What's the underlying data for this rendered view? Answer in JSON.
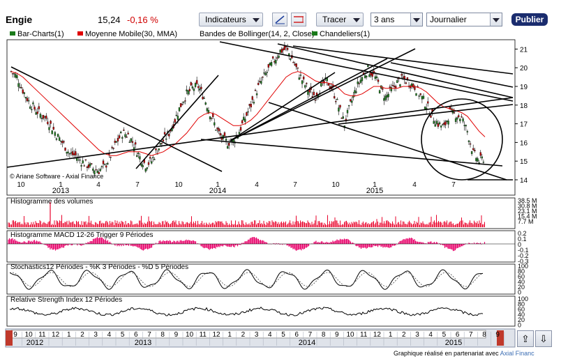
{
  "header": {
    "title": "Engie",
    "price": "15,24",
    "change": "-0,16 %",
    "indicators_label": "Indicateurs",
    "tracer_label": "Tracer",
    "period_value": "3 ans",
    "interval_value": "Journalier",
    "publish_label": "Publier"
  },
  "legend": [
    {
      "label": "Bar-Charts(1)",
      "color": "#1a7a1a"
    },
    {
      "label": "Moyenne Mobile(30, MMA)",
      "color": "#e00000"
    },
    {
      "label": "Bandes de Bollinger(14, 2, Close)",
      "color": ""
    },
    {
      "label": "Chandeliers(1)",
      "color": "#1a7a1a"
    }
  ],
  "footer": {
    "text": "Graphique réalisé en partenariat avec ",
    "brand": "Axial Financ"
  },
  "watermark": "© Ariane Software - Axial Finance",
  "colors": {
    "up": "#1a7a1a",
    "down": "#c00000",
    "ma": "#e00000",
    "volume": "#e8002a",
    "macd": "#e8006a",
    "line": "#000000"
  },
  "chart_data": [
    {
      "type": "candlestick",
      "title": "",
      "ylim": [
        14,
        21.5
      ],
      "y_ticks": [
        "14",
        "15",
        "16",
        "17",
        "18",
        "19",
        "20",
        "21"
      ],
      "x_month_ticks": [
        "10",
        "1",
        "4",
        "7",
        "10",
        "1",
        "4",
        "7",
        "10",
        "1",
        "4",
        "7"
      ],
      "x_year_labels": [
        "2013",
        "2014",
        "2015"
      ],
      "series": [
        {
          "name": "Bar-Charts(1)",
          "values": [
            19.8,
            19.5,
            18.8,
            18.2,
            17.8,
            17.5,
            17.3,
            16.8,
            16.3,
            15.9,
            15.4,
            15.3,
            15.0,
            14.8,
            14.6,
            14.5,
            14.7,
            15.3,
            16.0,
            16.5,
            16.4,
            15.9,
            15.2,
            14.8,
            15.0,
            15.6,
            16.1,
            16.5,
            17.2,
            18.0,
            18.6,
            18.9,
            19.0,
            18.4,
            17.6,
            16.8,
            16.2,
            16.0,
            16.1,
            16.6,
            17.3,
            18.0,
            18.8,
            19.4,
            19.9,
            20.4,
            20.9,
            21.0,
            20.5,
            19.8,
            19.2,
            18.7,
            18.5,
            19.0,
            19.3,
            18.8,
            17.9,
            17.0,
            18.0,
            18.9,
            19.5,
            19.9,
            19.6,
            19.0,
            18.4,
            18.8,
            19.2,
            19.4,
            19.2,
            19.0,
            18.5,
            18.0,
            17.4,
            17.0,
            16.8,
            17.6,
            17.5,
            17.3,
            16.6,
            15.4,
            15.0,
            15.2
          ]
        },
        {
          "name": "Moyenne Mobile(30, MMA)",
          "values": [
            19.8,
            19.7,
            19.5,
            19.2,
            18.9,
            18.6,
            18.3,
            18.0,
            17.7,
            17.4,
            17.1,
            16.8,
            16.5,
            16.2,
            15.9,
            15.6,
            15.4,
            15.3,
            15.3,
            15.4,
            15.5,
            15.5,
            15.5,
            15.4,
            15.3,
            15.4,
            15.5,
            15.7,
            15.9,
            16.2,
            16.5,
            16.9,
            17.3,
            17.5,
            17.6,
            17.5,
            17.3,
            17.1,
            16.9,
            16.9,
            17.0,
            17.2,
            17.5,
            17.9,
            18.3,
            18.7,
            19.1,
            19.5,
            19.7,
            19.8,
            19.7,
            19.5,
            19.3,
            19.2,
            19.2,
            19.1,
            18.9,
            18.6,
            18.5,
            18.5,
            18.6,
            18.8,
            19.0,
            19.0,
            18.9,
            18.9,
            18.9,
            19.0,
            19.0,
            19.0,
            18.9,
            18.7,
            18.4,
            18.1,
            17.9,
            17.8,
            17.7,
            17.6,
            17.4,
            17.0,
            16.6,
            16.3
          ]
        }
      ]
    },
    {
      "type": "bar",
      "title": "Histogramme des volumes",
      "y_ticks": [
        "38.5 M",
        "30.8 M",
        "23.1 M",
        "15.4 M",
        "7.7 M"
      ]
    },
    {
      "type": "bar",
      "title": "Histogramme MACD 12-26   Trigger 9 Périodes",
      "y_ticks": [
        "0.2",
        "0.1",
        "0",
        "-0.1",
        "-0.2",
        "-0.3"
      ]
    },
    {
      "type": "line",
      "title": "Stochastics12 Périodes  - %K 3 Périodes  - %D 5 Périodes",
      "y_ticks": [
        "100",
        "80",
        "60",
        "40",
        "20",
        "0"
      ]
    },
    {
      "type": "line",
      "title": "Relative Strength Index 12 Périodes",
      "y_ticks": [
        "100",
        "80",
        "60",
        "40",
        "20",
        "0"
      ]
    },
    {
      "type": "navigator",
      "x_month_ticks": [
        "9",
        "10",
        "11",
        "12",
        "1",
        "2",
        "3",
        "4",
        "5",
        "6",
        "7",
        "8",
        "9",
        "10",
        "11",
        "12",
        "1",
        "2",
        "3",
        "4",
        "5",
        "6",
        "7",
        "8",
        "9",
        "10",
        "11",
        "12",
        "1",
        "2",
        "3",
        "4",
        "5",
        "6",
        "7",
        "8",
        "9"
      ],
      "x_year_labels": [
        "2012",
        "2013",
        "2014",
        "2015"
      ]
    }
  ]
}
